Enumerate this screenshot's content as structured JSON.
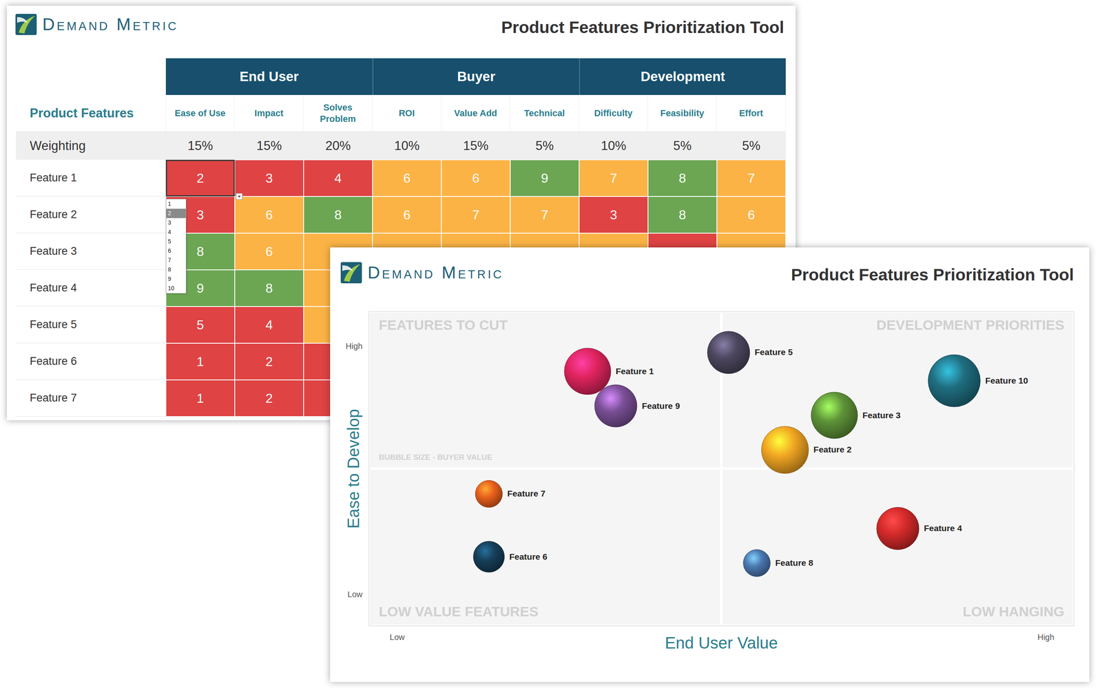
{
  "table_panel": {
    "brand": "Demand Metric",
    "title": "Product Features Prioritization Tool",
    "table": {
      "row_header": "Product Features",
      "groups": [
        {
          "name": "End User",
          "columns": [
            "Ease of Use",
            "Impact",
            "Solves Problem"
          ]
        },
        {
          "name": "Buyer",
          "columns": [
            "ROI",
            "Value Add",
            "Technical"
          ]
        },
        {
          "name": "Development",
          "columns": [
            "Difficulty",
            "Feasibility",
            "Effort"
          ]
        }
      ],
      "weighting_label": "Weighting",
      "weights": [
        "15%",
        "15%",
        "20%",
        "10%",
        "15%",
        "5%",
        "10%",
        "5%",
        "5%"
      ],
      "rows": [
        {
          "label": "Feature 1",
          "values": [
            2,
            3,
            4,
            6,
            6,
            9,
            7,
            8,
            7
          ],
          "colors": [
            "#df4343",
            "#df4343",
            "#df4343",
            "#fbb346",
            "#fbb346",
            "#6ca653",
            "#fbb346",
            "#6ca653",
            "#fbb346"
          ]
        },
        {
          "label": "Feature 2",
          "values": [
            3,
            6,
            8,
            6,
            7,
            7,
            3,
            8,
            6
          ],
          "colors": [
            "#df4343",
            "#fbb346",
            "#6ca653",
            "#fbb346",
            "#fbb346",
            "#fbb346",
            "#df4343",
            "#6ca653",
            "#fbb346"
          ]
        },
        {
          "label": "Feature 3",
          "values": [
            8,
            6,
            null,
            null,
            null,
            null,
            null,
            null,
            null
          ],
          "colors": [
            "#6ca653",
            "#fbb346",
            "#fbb346",
            "#fbb346",
            "#fbb346",
            "#fbb346",
            "#fbb346",
            "#df4343",
            "#fbb346"
          ]
        },
        {
          "label": "Feature 4",
          "values": [
            9,
            8,
            null,
            null,
            null,
            null,
            null,
            null,
            null
          ],
          "colors": [
            "#6ca653",
            "#6ca653",
            "#fbb346",
            null,
            null,
            null,
            null,
            null,
            null
          ]
        },
        {
          "label": "Feature 5",
          "values": [
            5,
            4,
            null,
            null,
            null,
            null,
            null,
            null,
            null
          ],
          "colors": [
            "#df4343",
            "#df4343",
            "#fbb346",
            null,
            null,
            null,
            null,
            null,
            null
          ]
        },
        {
          "label": "Feature 6",
          "values": [
            1,
            2,
            null,
            null,
            null,
            null,
            null,
            null,
            null
          ],
          "colors": [
            "#df4343",
            "#df4343",
            "#df4343",
            null,
            null,
            null,
            null,
            null,
            null
          ]
        },
        {
          "label": "Feature 7",
          "values": [
            1,
            2,
            null,
            null,
            null,
            null,
            null,
            null,
            null
          ],
          "colors": [
            "#df4343",
            "#df4343",
            "#df4343",
            null,
            null,
            null,
            null,
            null,
            null
          ]
        }
      ]
    },
    "dropdown": {
      "options": [
        1,
        2,
        3,
        4,
        5,
        6,
        7,
        8,
        9,
        10
      ],
      "selected": 2
    }
  },
  "chart_data": {
    "type": "bubble",
    "brand": "Demand Metric",
    "title": "Product Features Prioritization Tool",
    "x_label": "End User Value",
    "y_label": "Ease to Develop",
    "xlim": [
      0,
      10
    ],
    "ylim": [
      0,
      10
    ],
    "xticks": [
      {
        "value": 0.4,
        "label": "Low"
      },
      {
        "value": 9.6,
        "label": "High"
      }
    ],
    "yticks": [
      {
        "value": 1.0,
        "label": "Low"
      },
      {
        "value": 8.9,
        "label": "High"
      }
    ],
    "grid": false,
    "quadrants": {
      "top_left": "FEATURES TO CUT",
      "top_right": "DEVELOPMENT PRIORITIES",
      "bottom_left": "LOW VALUE FEATURES",
      "bottom_right": "LOW HANGING"
    },
    "size_note": "BUBBLE SIZE - BUYER VALUE",
    "points": [
      {
        "name": "Feature 1",
        "x": 3.1,
        "y": 8.1,
        "size": 6.5,
        "color": "#e0245e"
      },
      {
        "name": "Feature 9",
        "x": 3.5,
        "y": 7.0,
        "size": 5.4,
        "color": "#7a4f96"
      },
      {
        "name": "Feature 5",
        "x": 5.1,
        "y": 8.7,
        "size": 5.4,
        "color": "#4d475f"
      },
      {
        "name": "Feature 10",
        "x": 8.3,
        "y": 7.8,
        "size": 8.2,
        "color": "#1f6e80"
      },
      {
        "name": "Feature 3",
        "x": 6.6,
        "y": 6.7,
        "size": 6.5,
        "color": "#5e9338"
      },
      {
        "name": "Feature 2",
        "x": 5.9,
        "y": 5.6,
        "size": 6.7,
        "color": "#f2a622"
      },
      {
        "name": "Feature 7",
        "x": 1.7,
        "y": 4.2,
        "size": 2.2,
        "color": "#e8601c"
      },
      {
        "name": "Feature 6",
        "x": 1.7,
        "y": 2.2,
        "size": 2.9,
        "color": "#163e58"
      },
      {
        "name": "Feature 4",
        "x": 7.5,
        "y": 3.1,
        "size": 5.4,
        "color": "#d42a2a"
      },
      {
        "name": "Feature 8",
        "x": 5.5,
        "y": 2.0,
        "size": 2.2,
        "color": "#4a78b0"
      }
    ]
  }
}
